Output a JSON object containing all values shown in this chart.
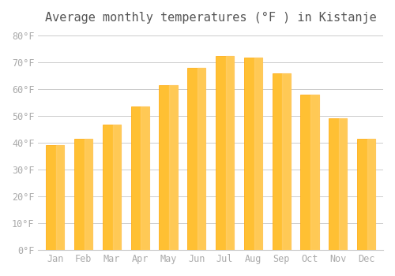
{
  "title": "Average monthly temperatures (°F ) in Kistanje",
  "months": [
    "Jan",
    "Feb",
    "Mar",
    "Apr",
    "May",
    "Jun",
    "Jul",
    "Aug",
    "Sep",
    "Oct",
    "Nov",
    "Dec"
  ],
  "values": [
    39.2,
    41.5,
    46.8,
    53.6,
    61.5,
    68.0,
    72.3,
    71.8,
    65.8,
    57.9,
    49.1,
    41.5
  ],
  "bar_color_main": "#FFC033",
  "bar_color_edge": "#FFA500",
  "background_color": "#FFFFFF",
  "plot_bg_color": "#FFFFFF",
  "grid_color": "#CCCCCC",
  "ytick_labels": [
    "0°F",
    "10°F",
    "20°F",
    "30°F",
    "40°F",
    "50°F",
    "60°F",
    "70°F",
    "80°F"
  ],
  "ytick_values": [
    0,
    10,
    20,
    30,
    40,
    50,
    60,
    70,
    80
  ],
  "ylim": [
    0,
    82
  ],
  "title_fontsize": 11,
  "tick_fontsize": 8.5,
  "tick_color": "#AAAAAA"
}
